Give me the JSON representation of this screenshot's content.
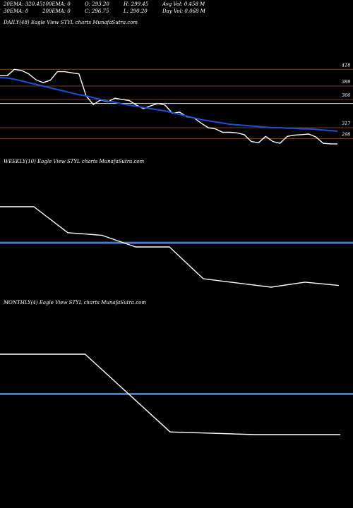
{
  "header": {
    "stats": [
      {
        "text": "20EMA: 320.45"
      },
      {
        "text": "100EMA: 0"
      },
      {
        "text": "O: 293.20"
      },
      {
        "text": "H: 299.45"
      },
      {
        "text": "Avg Vol: 0.458 M"
      },
      {
        "text": "30EMA: 0"
      },
      {
        "text": "200EMA: 0"
      },
      {
        "text": "C: 296.75"
      },
      {
        "text": "L: 290.20"
      },
      {
        "text": "Day Vol: 0.068 M"
      }
    ]
  },
  "panels": {
    "daily": {
      "label": "DAILY(48) Eagle View STYL charts MunafaSutra.com"
    },
    "weekly": {
      "label": "WEEKLY(10) Eagle View STYL charts MunafaSutra.com"
    },
    "monthly": {
      "label": "MONTHLY(4) Eagle View STYL charts MunafaSutra.com"
    }
  },
  "colors": {
    "background": "#000000",
    "price_line": "#ffffff",
    "ema_line": "#1f4fd8",
    "level_line": "#9a5a2a",
    "support_line": "#4a78d0"
  },
  "chart_data": [
    {
      "type": "line",
      "title": "DAILY(48)",
      "y_ticks": [
        418,
        389,
        366,
        317,
        298
      ],
      "series": [
        {
          "values": [
            407,
            407,
            418,
            416,
            410,
            400,
            395,
            399,
            414,
            414,
            412,
            410,
            372,
            357,
            365,
            362,
            368,
            366,
            364,
            356,
            350,
            355,
            359,
            356,
            342,
            344,
            336,
            334,
            325,
            317,
            315,
            309,
            309,
            308,
            305,
            293,
            291,
            302,
            293,
            290,
            302,
            304,
            305,
            306,
            301,
            290,
            289,
            289
          ]
        },
        {
          "values": [
            404,
            403,
            401,
            398,
            395,
            392,
            389,
            386,
            383,
            380,
            377,
            374,
            372,
            369,
            366,
            363,
            361,
            358,
            356,
            354,
            352,
            350,
            348,
            346,
            343,
            340,
            337,
            334,
            331,
            329,
            327,
            325,
            323,
            322,
            321,
            320,
            319,
            318,
            317,
            317,
            316,
            316,
            315,
            315,
            314,
            313,
            312,
            311
          ]
        }
      ],
      "levels": [
        418,
        389,
        366,
        359,
        317,
        298
      ]
    },
    {
      "type": "line",
      "title": "WEEKLY(10)",
      "series": [
        {
          "values": [
            392,
            392,
            361,
            358,
            344,
            344,
            306,
            301,
            296,
            302,
            298
          ]
        }
      ],
      "levels": [
        349
      ]
    },
    {
      "type": "line",
      "title": "MONTHLY(4)",
      "series": [
        {
          "values": [
            392,
            392,
            304,
            301,
            301
          ]
        }
      ],
      "levels": [
        347
      ]
    }
  ]
}
